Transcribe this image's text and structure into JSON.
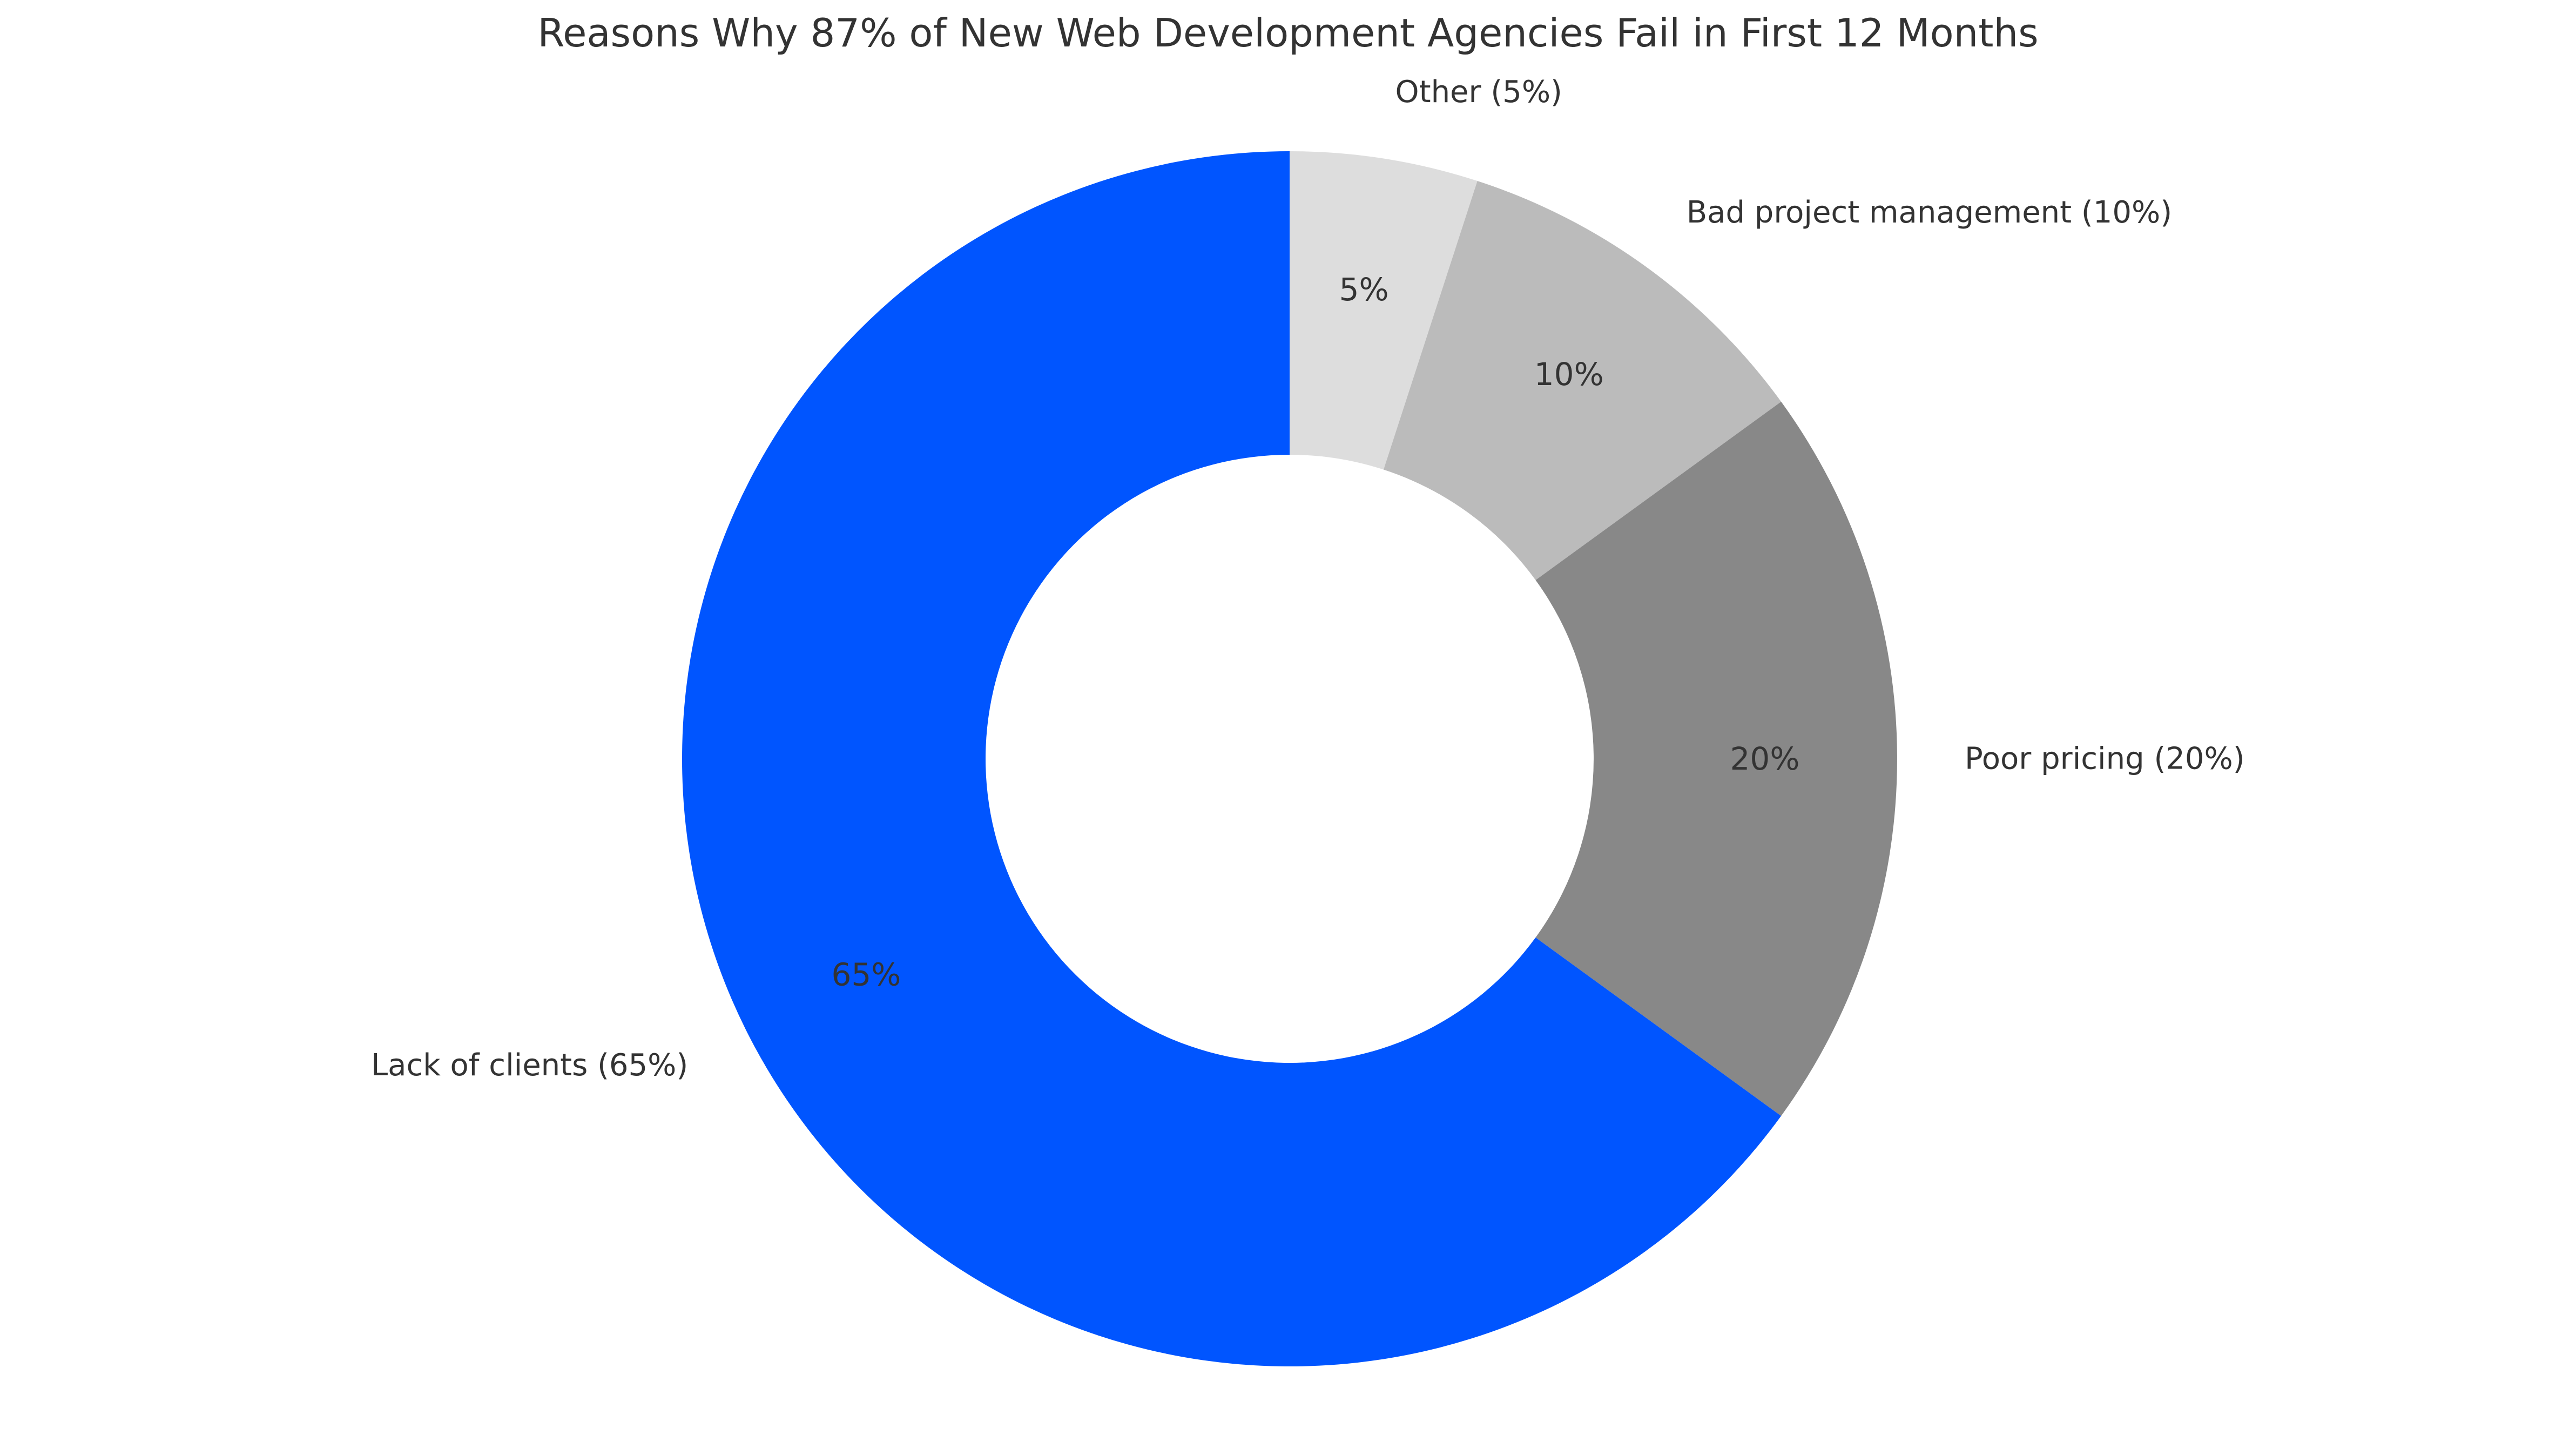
{
  "chart_data": {
    "type": "pie",
    "donut": true,
    "title": "Reasons Why 87% of New Web Development Agencies Fail in First 12 Months",
    "start_angle": "top",
    "direction": "clockwise",
    "slices": [
      {
        "label": "Other (5%)",
        "value": 5,
        "pct_label": "5%",
        "color": "#dddddd"
      },
      {
        "label": "Bad project management (10%)",
        "value": 10,
        "pct_label": "10%",
        "color": "#bbbbbb"
      },
      {
        "label": "Poor pricing (20%)",
        "value": 20,
        "pct_label": "20%",
        "color": "#888888"
      },
      {
        "label": "Lack of clients (65%)",
        "value": 65,
        "pct_label": "65%",
        "color": "#0055ff"
      }
    ]
  }
}
